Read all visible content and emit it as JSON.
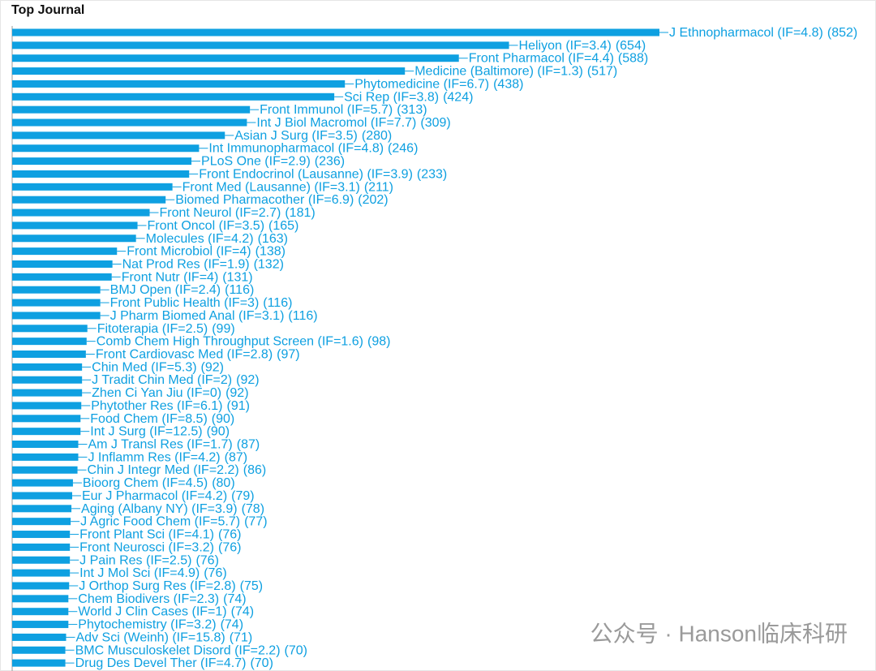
{
  "chart_data": {
    "type": "barh",
    "title": "Top Journal",
    "color": "#0ea0e1",
    "categories": [
      "J Ethnopharmacol (IF=4.8)",
      "Heliyon (IF=3.4)",
      "Front Pharmacol (IF=4.4)",
      "Medicine (Baltimore) (IF=1.3)",
      "Phytomedicine (IF=6.7)",
      "Sci Rep (IF=3.8)",
      "Front Immunol (IF=5.7)",
      "Int J Biol Macromol (IF=7.7)",
      "Asian J Surg (IF=3.5)",
      "Int Immunopharmacol (IF=4.8)",
      "PLoS One (IF=2.9)",
      "Front Endocrinol (Lausanne) (IF=3.9)",
      "Front Med (Lausanne) (IF=3.1)",
      "Biomed Pharmacother (IF=6.9)",
      "Front Neurol (IF=2.7)",
      "Front Oncol (IF=3.5)",
      "Molecules (IF=4.2)",
      "Front Microbiol (IF=4)",
      "Nat Prod Res (IF=1.9)",
      "Front Nutr (IF=4)",
      "BMJ Open (IF=2.4)",
      "Front Public Health (IF=3)",
      "J Pharm Biomed Anal (IF=3.1)",
      "Fitoterapia (IF=2.5)",
      "Comb Chem High Throughput Screen (IF=1.6)",
      "Front Cardiovasc Med (IF=2.8)",
      "Chin Med (IF=5.3)",
      "J Tradit Chin Med (IF=2)",
      "Zhen Ci Yan Jiu (IF=0)",
      "Phytother Res (IF=6.1)",
      "Food Chem (IF=8.5)",
      "Int J Surg (IF=12.5)",
      "Am J Transl Res (IF=1.7)",
      "J Inflamm Res (IF=4.2)",
      "Chin J Integr Med (IF=2.2)",
      "Bioorg Chem (IF=4.5)",
      "Eur J Pharmacol (IF=4.2)",
      "Aging (Albany NY) (IF=3.9)",
      "J Agric Food Chem (IF=5.7)",
      "Front Plant Sci (IF=4.1)",
      "Front Neurosci (IF=3.2)",
      "J Pain Res (IF=2.5)",
      "Int J Mol Sci (IF=4.9)",
      "J Orthop Surg Res (IF=2.8)",
      "Chem Biodivers (IF=2.3)",
      "World J Clin Cases (IF=1)",
      "Phytochemistry (IF=3.2)",
      "Adv Sci (Weinh) (IF=15.8)",
      "BMC Musculoskelet Disord (IF=2.2)",
      "Drug Des Devel Ther (IF=4.7)"
    ],
    "values": [
      852,
      654,
      588,
      517,
      438,
      424,
      313,
      309,
      280,
      246,
      236,
      233,
      211,
      202,
      181,
      165,
      163,
      138,
      132,
      131,
      116,
      116,
      116,
      99,
      98,
      97,
      92,
      92,
      92,
      91,
      90,
      90,
      87,
      87,
      86,
      80,
      79,
      78,
      77,
      76,
      76,
      76,
      76,
      75,
      74,
      74,
      74,
      71,
      70,
      70
    ],
    "value_labels": [
      "(852)",
      "(654)",
      "(588)",
      "(517)",
      "(438)",
      "(424)",
      "(313)",
      "(309)",
      "(280)",
      "(246)",
      "(236)",
      "(233)",
      "(211)",
      "(202)",
      "(181)",
      "(165)",
      "(163)",
      "(138)",
      "(132)",
      "(131)",
      "(116)",
      "(116)",
      "(116)",
      "(99)",
      "(98)",
      "(97)",
      "(92)",
      "(92)",
      "(92)",
      "(91)",
      "(90)",
      "(90)",
      "(87)",
      "(87)",
      "(86)",
      "(80)",
      "(79)",
      "(78)",
      "(77)",
      "(76)",
      "(76)",
      "(76)",
      "(76)",
      "(75)",
      "(74)",
      "(74)",
      "(74)",
      "(71)",
      "(70)",
      "(70)"
    ]
  },
  "watermark": "公众号 · Hanson临床科研"
}
